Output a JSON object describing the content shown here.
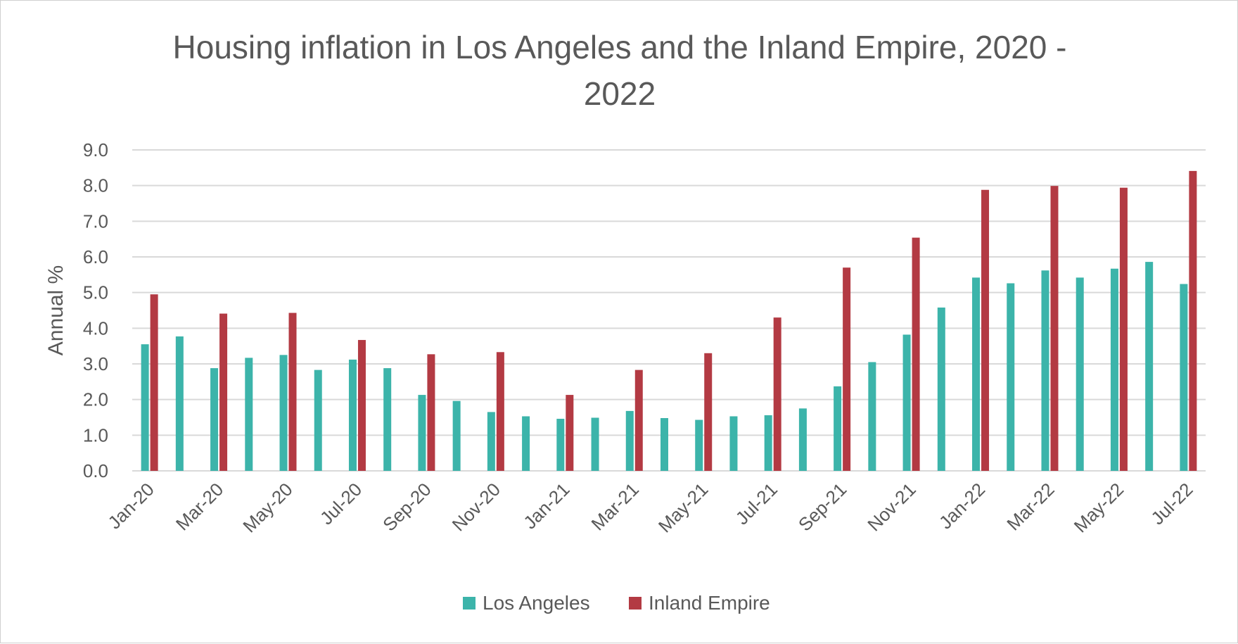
{
  "chart_data": {
    "type": "bar",
    "title": "Housing inflation in Los Angeles and the Inland Empire, 2020 - 2022",
    "title_lines": [
      "Housing inflation in Los Angeles and the Inland Empire, 2020 -",
      "2022"
    ],
    "xlabel": "",
    "ylabel": "Annual %",
    "ylim": [
      0,
      9
    ],
    "yticks": [
      "0.0",
      "1.0",
      "2.0",
      "3.0",
      "4.0",
      "5.0",
      "6.0",
      "7.0",
      "8.0",
      "9.0"
    ],
    "grid": true,
    "legend_position": "bottom",
    "categories": [
      "Jan-20",
      "Feb-20",
      "Mar-20",
      "Apr-20",
      "May-20",
      "Jun-20",
      "Jul-20",
      "Aug-20",
      "Sep-20",
      "Oct-20",
      "Nov-20",
      "Dec-20",
      "Jan-21",
      "Feb-21",
      "Mar-21",
      "Apr-21",
      "May-21",
      "Jun-21",
      "Jul-21",
      "Aug-21",
      "Sep-21",
      "Oct-21",
      "Nov-21",
      "Dec-21",
      "Jan-22",
      "Feb-22",
      "Mar-22",
      "Apr-22",
      "May-22",
      "Jun-22",
      "Jul-22"
    ],
    "tick_labels": [
      "Jan-20",
      "Mar-20",
      "May-20",
      "Jul-20",
      "Sep-20",
      "Nov-20",
      "Jan-21",
      "Mar-21",
      "May-21",
      "Jul-21",
      "Sep-21",
      "Nov-21",
      "Jan-22",
      "Mar-22",
      "May-22",
      "Jul-22"
    ],
    "series": [
      {
        "name": "Los Angeles",
        "color": "#3cb4aa",
        "values": [
          3.55,
          3.77,
          2.88,
          3.17,
          3.25,
          2.83,
          3.12,
          2.88,
          2.13,
          1.96,
          1.65,
          1.53,
          1.46,
          1.49,
          1.68,
          1.48,
          1.43,
          1.53,
          1.56,
          1.75,
          2.37,
          3.05,
          3.82,
          4.58,
          5.42,
          5.26,
          5.62,
          5.42,
          5.67,
          5.86,
          5.24
        ]
      },
      {
        "name": "Inland Empire",
        "color": "#b33a43",
        "values": [
          4.95,
          null,
          4.41,
          null,
          4.43,
          null,
          3.67,
          null,
          3.27,
          null,
          3.33,
          null,
          2.13,
          null,
          2.83,
          null,
          3.3,
          null,
          4.3,
          null,
          5.7,
          null,
          6.54,
          null,
          7.88,
          null,
          7.99,
          null,
          7.94,
          null,
          8.41
        ]
      }
    ]
  }
}
